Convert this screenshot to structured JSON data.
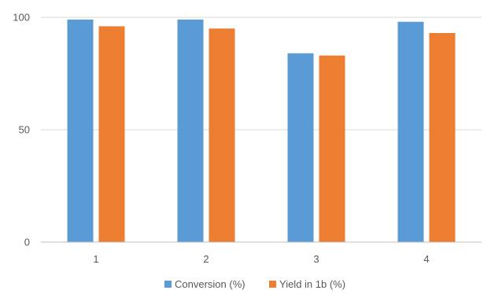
{
  "chart_data": {
    "type": "bar",
    "categories": [
      "1",
      "2",
      "3",
      "4"
    ],
    "series": [
      {
        "name": "Conversion (%)",
        "values": [
          99,
          99,
          84,
          98
        ],
        "color": "#5B9BD5"
      },
      {
        "name": "Yield in 1b (%)",
        "values": [
          96,
          95,
          83,
          93
        ],
        "color": "#ED7D31"
      }
    ],
    "y_ticks": [
      "0",
      "50",
      "100"
    ],
    "ylim": [
      0,
      100
    ],
    "grid": true,
    "legend_position": "bottom",
    "gridline_color": "#D9D9D9",
    "axis_line_color": "#BFBFBF"
  }
}
